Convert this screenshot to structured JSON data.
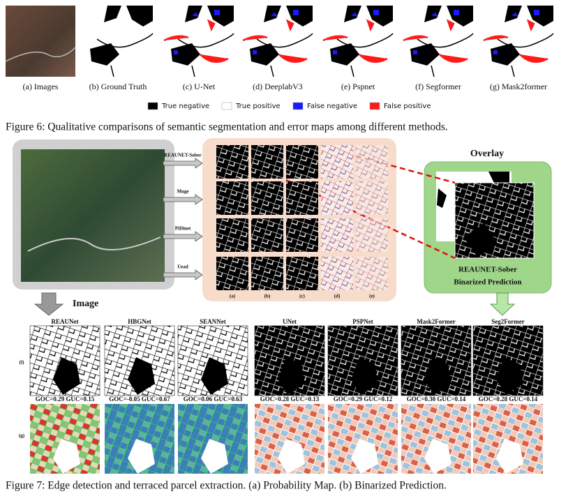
{
  "figure6": {
    "panels": [
      "(a) Images",
      "(b) Ground Truth",
      "(c) U-Net",
      "(d) DeeplabV3",
      "(e) Pspnet",
      "(f) Segformer",
      "(g) Mask2former"
    ],
    "legend": [
      {
        "label": "True negative",
        "color": "#000000"
      },
      {
        "label": "True positive",
        "color": "#ffffff"
      },
      {
        "label": "False negative",
        "color": "#1a1aff"
      },
      {
        "label": "False positive",
        "color": "#ff1a1a"
      }
    ],
    "caption": "Figure 6: Qualitative comparisons of semantic segmentation and error maps among different methods."
  },
  "figure7": {
    "arrows": [
      "REAUNET-Sober",
      "Muge",
      "PiDinet",
      "Uead"
    ],
    "columns": [
      "(a)",
      "(b)",
      "(c)",
      "(d)",
      "(e)"
    ],
    "overlay_title": "Overlay",
    "overlay_label": [
      "REAUNET-Sober",
      "Binarized Prediction"
    ],
    "image_label": "Image",
    "rows": [
      "(f)",
      "(g)"
    ],
    "methods": [
      {
        "name": "REAUNet",
        "metrics": "GOC=0.29 GUC=0.15"
      },
      {
        "name": "HBGNet",
        "metrics": "GOC=-0.05 GUC=0.67"
      },
      {
        "name": "SEANNet",
        "metrics": "GOC=0.06 GUC=0.63"
      },
      {
        "name": "UNet",
        "metrics": "GOC=0.28 GUC=0.13"
      },
      {
        "name": "PSPNet",
        "metrics": "GOC=0.29 GUC=0.12"
      },
      {
        "name": "Mask2Former",
        "metrics": "GOC=0.30 GUC=0.14"
      },
      {
        "name": "Seg2Former",
        "metrics": "GOC=0.28 GUC=0.14"
      }
    ],
    "caption": "Figure 7: Edge detection and terraced parcel extraction. (a) Probability Map. (b) Binarized Prediction."
  }
}
